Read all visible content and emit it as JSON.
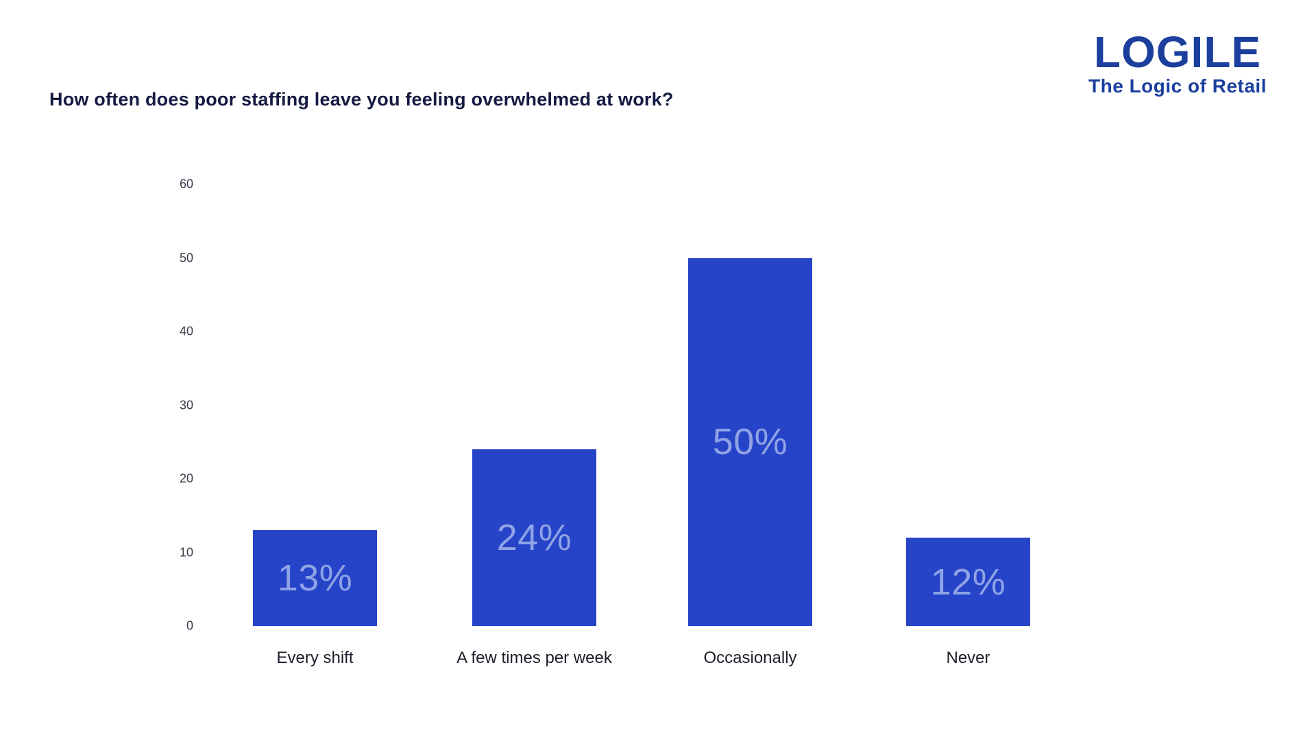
{
  "title": "How often does poor staffing leave you feeling overwhelmed at work?",
  "logo": {
    "wordmark": "LOGILE",
    "tagline": "The Logic of Retail"
  },
  "colors": {
    "bar": "#2644c8",
    "bar_value_label": "#8fa3e6",
    "title_text": "#151a42",
    "logo_blue": "#1c3f9e",
    "axis_text": "#3c3c4e"
  },
  "chart_data": {
    "type": "bar",
    "title": "How often does poor staffing leave you feeling overwhelmed at work?",
    "categories": [
      "Every shift",
      "A few times per week",
      "Occasionally",
      "Never"
    ],
    "values": [
      13,
      24,
      50,
      12
    ],
    "value_labels": [
      "13%",
      "24%",
      "50%",
      "12%"
    ],
    "xlabel": "",
    "ylabel": "",
    "ylim": [
      0,
      60
    ],
    "yticks": [
      0,
      10,
      20,
      30,
      40,
      50,
      60
    ],
    "grid": false,
    "legend": false,
    "value_label_position": "inside-center"
  }
}
